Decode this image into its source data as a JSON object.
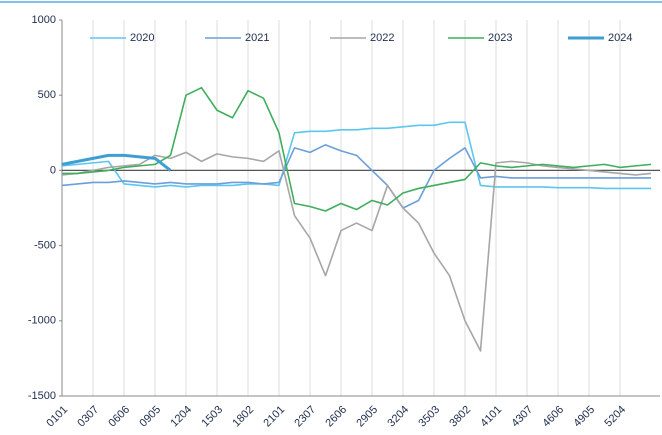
{
  "chart_data": {
    "type": "line",
    "categories": [
      "0101",
      null,
      "0307",
      null,
      "0606",
      null,
      "0905",
      null,
      "1204",
      null,
      "1503",
      null,
      "1802",
      null,
      "2101",
      null,
      "2307",
      null,
      "2606",
      null,
      "2905",
      null,
      "3204",
      null,
      "3503",
      null,
      "3802",
      null,
      "4101",
      null,
      "4307",
      null,
      "4606",
      null,
      "4905",
      null,
      "5204",
      null,
      null
    ],
    "series": [
      {
        "name": "2020",
        "color": "#5cc6ef",
        "values": [
          30,
          40,
          50,
          60,
          -90,
          -100,
          -110,
          -100,
          -110,
          -100,
          -100,
          -100,
          -90,
          -90,
          -100,
          250,
          260,
          260,
          270,
          270,
          280,
          280,
          290,
          300,
          300,
          320,
          320,
          -100,
          -110,
          -110,
          -110,
          -110,
          -115,
          -115,
          -115,
          -120,
          -120,
          -120,
          -120
        ]
      },
      {
        "name": "2021",
        "color": "#6b9fd9",
        "values": [
          -100,
          -90,
          -80,
          -80,
          -70,
          -80,
          -90,
          -80,
          -90,
          -90,
          -90,
          -80,
          -80,
          -90,
          -80,
          150,
          120,
          170,
          130,
          100,
          0,
          -100,
          -250,
          -200,
          0,
          80,
          150,
          -50,
          -40,
          -50,
          -50,
          -50,
          -50,
          -50,
          -50,
          -50,
          -50,
          -50,
          -50
        ]
      },
      {
        "name": "2022",
        "color": "#a6a6a6",
        "values": [
          -30,
          -20,
          0,
          20,
          30,
          40,
          100,
          80,
          120,
          60,
          110,
          90,
          80,
          60,
          130,
          -300,
          -450,
          -700,
          -400,
          -350,
          -400,
          -100,
          -250,
          -350,
          -550,
          -700,
          -1000,
          -1200,
          50,
          60,
          50,
          30,
          20,
          10,
          0,
          -10,
          -20,
          -30,
          -20
        ]
      },
      {
        "name": "2023",
        "color": "#3fae5c",
        "values": [
          -20,
          -20,
          -10,
          0,
          20,
          30,
          40,
          100,
          500,
          550,
          400,
          350,
          530,
          480,
          250,
          -220,
          -240,
          -270,
          -220,
          -260,
          -200,
          -230,
          -150,
          -120,
          -100,
          -80,
          -60,
          50,
          30,
          20,
          30,
          40,
          30,
          20,
          30,
          40,
          20,
          30,
          40
        ]
      },
      {
        "name": "2024",
        "color": "#3f9fd2",
        "width": 3,
        "values": [
          40,
          60,
          80,
          100,
          100,
          90,
          80,
          0,
          null,
          null,
          null,
          null,
          null,
          null,
          null,
          null,
          null,
          null,
          null,
          null,
          null,
          null,
          null,
          null,
          null,
          null,
          null,
          null,
          null,
          null,
          null,
          null,
          null,
          null,
          null,
          null,
          null,
          null,
          null
        ]
      }
    ],
    "ylim": [
      -1500,
      1000
    ],
    "yticks": [
      -1500,
      -1000,
      -500,
      0,
      500,
      1000
    ],
    "grid": "x"
  }
}
